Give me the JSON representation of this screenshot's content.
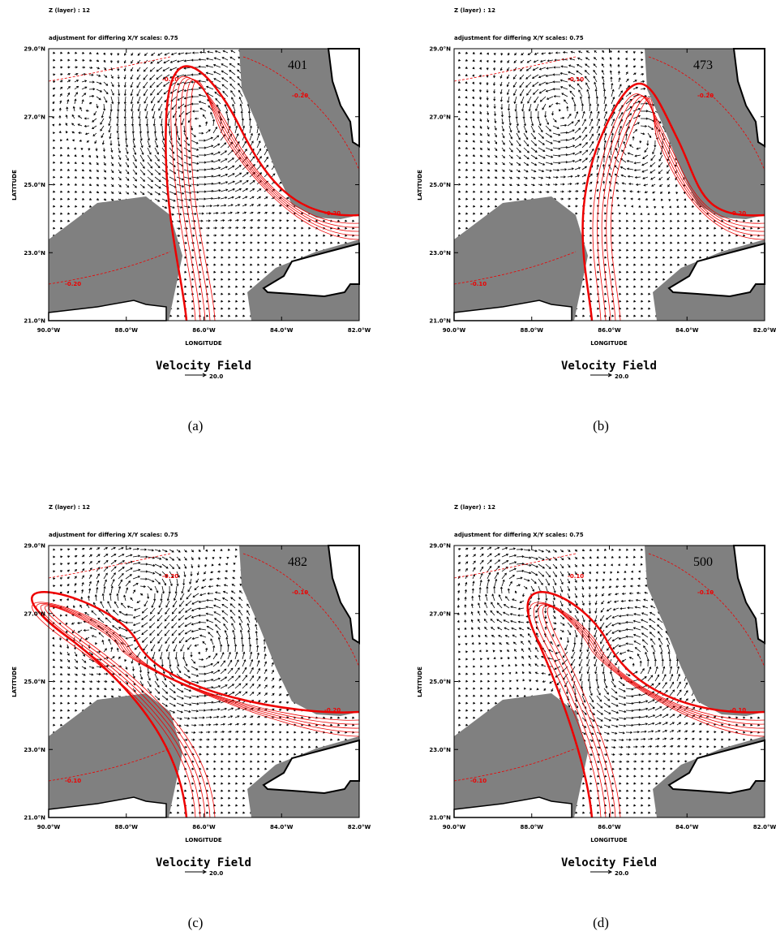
{
  "panels": [
    {
      "header": "Z (layer) : 12",
      "note": "adjustment for differing X/Y scales: 0.75",
      "frame_label": "401",
      "y_axis_label": "LATITUDE",
      "x_axis_label": "LONGITUDE",
      "y_ticks": [
        "29.0°N",
        "27.0°N",
        "25.0°N",
        "23.0°N",
        "21.0°N"
      ],
      "x_ticks": [
        "90.0°W",
        "88.0°W",
        "86.0°W",
        "84.0°W",
        "82.0°W"
      ],
      "contour_labels": [
        "-0.20",
        "-0.10",
        "-0.20",
        "-0.20"
      ],
      "legend_title": "Velocity Field",
      "legend_value": "20.0",
      "caption": "(a)"
    },
    {
      "header": "Z (layer) : 12",
      "note": "adjustment for differing X/Y scales: 0.75",
      "frame_label": "473",
      "y_axis_label": "LATITUDE",
      "x_axis_label": "LONGITUDE",
      "y_ticks": [
        "29.0°N",
        "27.0°N",
        "25.0°N",
        "23.0°N",
        "21.0°N"
      ],
      "x_ticks": [
        "90.0°W",
        "88.0°W",
        "86.0°W",
        "84.0°W",
        "82.0°W"
      ],
      "contour_labels": [
        "-0.10",
        "-0.10",
        "-0.20",
        "-0.20"
      ],
      "legend_title": "Velocity Field",
      "legend_value": "20.0",
      "caption": "(b)"
    },
    {
      "header": "Z (layer) : 12",
      "note": "adjustment for differing X/Y scales: 0.75",
      "frame_label": "482",
      "y_axis_label": "LATITUDE",
      "x_axis_label": "LONGITUDE",
      "y_ticks": [
        "29.0°N",
        "27.0°N",
        "25.0°N",
        "23.0°N",
        "21.0°N"
      ],
      "x_ticks": [
        "90.0°W",
        "88.0°W",
        "86.0°W",
        "84.0°W",
        "82.0°W"
      ],
      "contour_labels": [
        "-0.10",
        "-0.20",
        "-0.10",
        "-0.20"
      ],
      "legend_title": "Velocity Field",
      "legend_value": "20.0",
      "caption": "(c)"
    },
    {
      "header": "Z (layer) : 12",
      "note": "adjustment for differing X/Y scales: 0.75",
      "frame_label": "500",
      "y_axis_label": "LATITUDE",
      "x_axis_label": "LONGITUDE",
      "y_ticks": [
        "29.0°N",
        "27.0°N",
        "25.0°N",
        "23.0°N",
        "21.0°N"
      ],
      "x_ticks": [
        "90.0°W",
        "88.0°W",
        "86.0°W",
        "84.0°W",
        "82.0°W"
      ],
      "contour_labels": [
        "-0.10",
        "-0.10",
        "-0.10",
        "-0.10"
      ],
      "legend_title": "Velocity Field",
      "legend_value": "20.0",
      "caption": "(d)"
    }
  ]
}
